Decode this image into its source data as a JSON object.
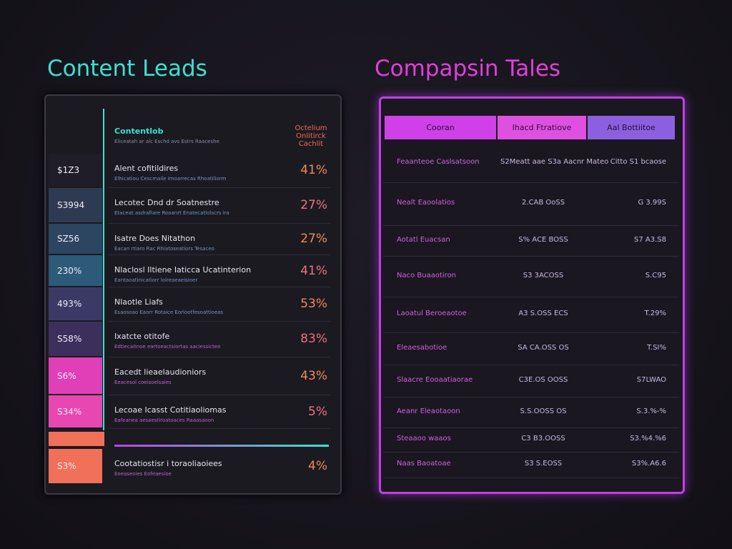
{
  "left": {
    "title": "Content Leads",
    "header": {
      "label": "Contentlob",
      "sub": "Eliceatah ar alc Eschd avs Estrs Raaceshe",
      "right": "Octelium Onlitirck Cachlit"
    },
    "rows": [
      {
        "cell": "$1Z3",
        "title": "Alent cofitildires",
        "sub": "Elhicatiou Cescmaile Imoarrecas Rhoatiliorm",
        "pct": "41%"
      },
      {
        "cell": "S3994",
        "title": "Lecotec Dnd dr Soatnestre",
        "sub": "Etaceat asdrafiare Rooanrt Enatecatlolscrs ira",
        "pct": "27%"
      },
      {
        "cell": "SZ56",
        "title": "Isatre Does Nitathon",
        "sub": "Eacan rtiaro Rac Rhiatoseatiors Tesaceo",
        "pct": "27%"
      },
      {
        "cell": "230%",
        "title": "Nlaclosl Iltiene Iaticca Ucatinterion",
        "sub": "Eantaoatinicatiorr lolreaeaeisioer",
        "pct": "41%"
      },
      {
        "cell": "493%",
        "title": "Nlaotle Liafs",
        "sub": "Esaosoao Eaorr Rotaice Eorlootfesoattioeas",
        "pct": "53%"
      },
      {
        "cell": "S58%",
        "title": "Ixatcte otitofe",
        "sub": "Edtiecaitnoe eartoeactsiortas aaciessicteo",
        "pct": "83%"
      },
      {
        "cell": "S6%",
        "title": "Eacedt lieaelaudioniors",
        "sub": "Eeacesol coeisoelsaies",
        "pct": "43%"
      },
      {
        "cell": "S34%",
        "title": "Lecoae Icasst Cotitiaoliomas",
        "sub": "Eafeanea aesaestiroatoaces Raaasaoon",
        "pct": "5%"
      },
      {
        "cell": "S3%",
        "title": "Cootatiostisr i toraoliaoiees",
        "sub": "Eoeaseoies Eofeaesioe",
        "pct": "4%"
      }
    ]
  },
  "right": {
    "title": "Compapsin Tales",
    "columns": [
      "Cooran",
      "Ihacd Ftratiove",
      "Aal Bottiitoe"
    ],
    "rows": [
      [
        "Feaanteoe Caslsatsoon",
        "S2Meatt aae S3a Aacnr Mateo",
        "Citto S1 bcaose"
      ],
      [
        "Nealt Eaoolatios",
        "2.CAB OoSS",
        "G 3.99S"
      ],
      [
        "Aotatl Euacsan",
        "S% ACE BOSS",
        "S7 A3.S8"
      ],
      [
        "Naco Buaaotiron",
        "S3 3ACOSS",
        "S.C95"
      ],
      [
        "Laoatul Beroeaotoe",
        "A3 S.OSS ECS",
        "T.29%"
      ],
      [
        "Eleaesabotioe",
        "SA CA.OSS OS",
        "T.SI%"
      ],
      [
        "Slaacre Eooaatiaorae",
        "C3E.OS OOSS",
        "S7LWAO"
      ],
      [
        "Aeanr Eleaotaoon",
        "S.S.OOSS OS",
        "S.3.%-%"
      ],
      [
        "Steaaoo waaos",
        "C3 B3.OOSS",
        "S3.%4.%6"
      ],
      [
        "Naas Baoatoae",
        "S3 S.EOSS",
        "S3%.A6.6"
      ]
    ]
  }
}
